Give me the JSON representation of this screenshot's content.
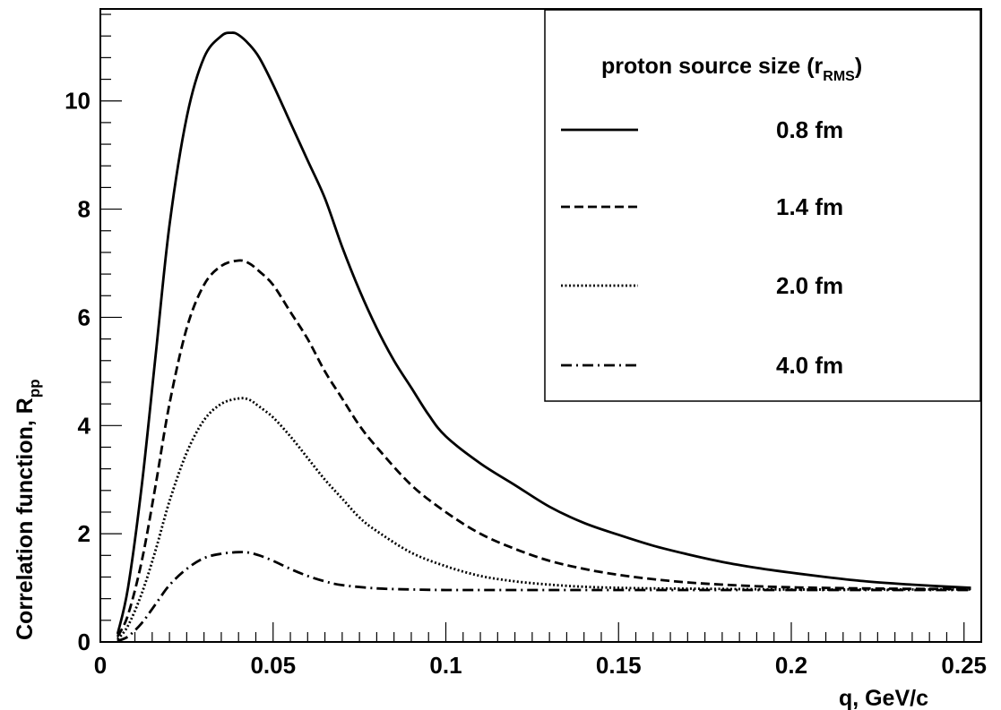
{
  "chart_data": {
    "type": "line",
    "title": "",
    "xlabel": "q, GeV/c",
    "ylabel_main": "Correlation function, R",
    "ylabel_sub": "pp",
    "xlim": [
      0,
      0.255
    ],
    "ylim": [
      0,
      11.7
    ],
    "x_ticks": [
      0,
      0.05,
      0.1,
      0.15,
      0.2,
      0.25
    ],
    "x_tick_labels": [
      "0",
      "0.05",
      "0.1",
      "0.15",
      "0.2",
      "0.25"
    ],
    "y_ticks": [
      0,
      2,
      4,
      6,
      8,
      10
    ],
    "y_tick_labels": [
      "0",
      "2",
      "4",
      "6",
      "8",
      "10"
    ],
    "grid": false,
    "legend": {
      "title_main": "proton source size (r",
      "title_sub": "RMS",
      "title_close": ")",
      "placement": "top-right"
    },
    "series": [
      {
        "name": "0.8 fm",
        "style": "solid",
        "x": [
          0.005,
          0.008,
          0.012,
          0.016,
          0.02,
          0.025,
          0.03,
          0.035,
          0.038,
          0.04,
          0.043,
          0.046,
          0.05,
          0.055,
          0.06,
          0.065,
          0.07,
          0.075,
          0.08,
          0.085,
          0.09,
          0.095,
          0.1,
          0.11,
          0.12,
          0.13,
          0.14,
          0.15,
          0.16,
          0.17,
          0.18,
          0.19,
          0.2,
          0.21,
          0.22,
          0.23,
          0.24,
          0.252
        ],
        "y": [
          0.15,
          1.0,
          2.9,
          5.3,
          7.7,
          9.7,
          10.8,
          11.2,
          11.26,
          11.22,
          11.05,
          10.8,
          10.3,
          9.6,
          8.9,
          8.2,
          7.3,
          6.5,
          5.8,
          5.2,
          4.7,
          4.2,
          3.8,
          3.3,
          2.9,
          2.5,
          2.2,
          1.98,
          1.78,
          1.62,
          1.48,
          1.37,
          1.28,
          1.2,
          1.13,
          1.08,
          1.04,
          1.0
        ]
      },
      {
        "name": "1.4 fm",
        "style": "dashed",
        "x": [
          0.005,
          0.008,
          0.012,
          0.016,
          0.02,
          0.025,
          0.03,
          0.035,
          0.04,
          0.043,
          0.046,
          0.05,
          0.055,
          0.06,
          0.065,
          0.07,
          0.075,
          0.08,
          0.09,
          0.1,
          0.11,
          0.12,
          0.13,
          0.14,
          0.15,
          0.16,
          0.17,
          0.18,
          0.19,
          0.2,
          0.22,
          0.24,
          0.252
        ],
        "y": [
          0.1,
          0.5,
          1.5,
          2.9,
          4.4,
          5.8,
          6.6,
          6.95,
          7.05,
          7.0,
          6.85,
          6.6,
          6.1,
          5.6,
          5.0,
          4.5,
          4.0,
          3.6,
          2.9,
          2.4,
          2.0,
          1.72,
          1.5,
          1.35,
          1.24,
          1.16,
          1.1,
          1.06,
          1.03,
          1.01,
          0.99,
          0.98,
          0.98
        ]
      },
      {
        "name": "2.0 fm",
        "style": "dotted",
        "x": [
          0.005,
          0.008,
          0.012,
          0.016,
          0.02,
          0.025,
          0.03,
          0.035,
          0.04,
          0.043,
          0.046,
          0.05,
          0.055,
          0.06,
          0.065,
          0.07,
          0.075,
          0.08,
          0.09,
          0.1,
          0.11,
          0.12,
          0.13,
          0.14,
          0.15,
          0.16,
          0.18,
          0.2,
          0.22,
          0.24,
          0.252
        ],
        "y": [
          0.05,
          0.3,
          0.9,
          1.7,
          2.6,
          3.5,
          4.1,
          4.4,
          4.5,
          4.48,
          4.35,
          4.15,
          3.8,
          3.4,
          3.0,
          2.65,
          2.3,
          2.05,
          1.65,
          1.4,
          1.22,
          1.12,
          1.06,
          1.02,
          1.0,
          0.99,
          0.98,
          0.97,
          0.97,
          0.97,
          0.97
        ]
      },
      {
        "name": "4.0 fm",
        "style": "dashdot",
        "x": [
          0.005,
          0.008,
          0.012,
          0.016,
          0.02,
          0.025,
          0.03,
          0.035,
          0.04,
          0.043,
          0.046,
          0.05,
          0.055,
          0.06,
          0.065,
          0.07,
          0.08,
          0.09,
          0.1,
          0.12,
          0.14,
          0.16,
          0.18,
          0.2,
          0.22,
          0.24,
          0.252
        ],
        "y": [
          0.02,
          0.1,
          0.35,
          0.7,
          1.05,
          1.35,
          1.55,
          1.63,
          1.66,
          1.65,
          1.6,
          1.5,
          1.35,
          1.22,
          1.12,
          1.05,
          0.99,
          0.97,
          0.96,
          0.96,
          0.96,
          0.96,
          0.96,
          0.96,
          0.96,
          0.96,
          0.96
        ]
      }
    ]
  }
}
